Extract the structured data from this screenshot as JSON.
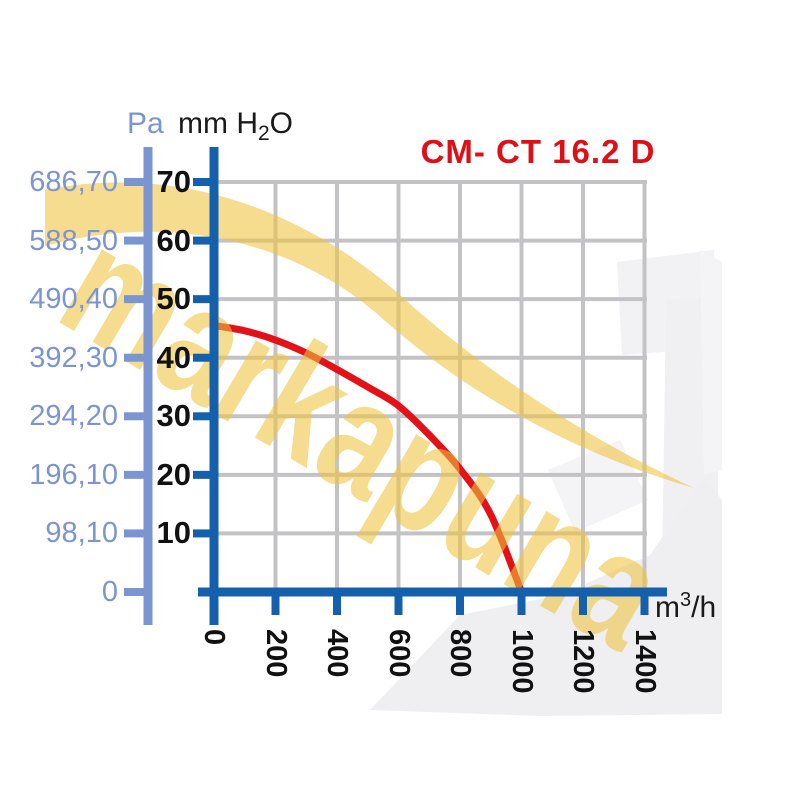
{
  "title": "CM- CT 16.2 D",
  "watermark": {
    "text": "markapuna"
  },
  "colors": {
    "title_red": "#dd1017",
    "curve_red": "#e41119",
    "dark_blue_axis": "#1560ad",
    "pa_blue_axis": "#7b95d1",
    "grid_gray": "#c3c3c5",
    "watermark_yellow": "#eec33f",
    "photo_gray": "#f0f0f3"
  },
  "y_axis_pa": {
    "label": "Pa",
    "ticks": [
      {
        "label": "686,70",
        "value": 70
      },
      {
        "label": "588,50",
        "value": 60
      },
      {
        "label": "490,40",
        "value": 50
      },
      {
        "label": "392,30",
        "value": 40
      },
      {
        "label": "294,20",
        "value": 30
      },
      {
        "label": "196,10",
        "value": 20
      },
      {
        "label": "98,10",
        "value": 10
      },
      {
        "label": "0",
        "value": 0
      }
    ]
  },
  "y_axis_mm": {
    "label_prefix": "mm H",
    "label_sub": "2",
    "label_suffix": "O",
    "ticks": [
      {
        "label": "70",
        "value": 70
      },
      {
        "label": "60",
        "value": 60
      },
      {
        "label": "50",
        "value": 50
      },
      {
        "label": "40",
        "value": 40
      },
      {
        "label": "30",
        "value": 30
      },
      {
        "label": "20",
        "value": 20
      },
      {
        "label": "10",
        "value": 10
      }
    ]
  },
  "x_axis": {
    "unit_base": "m",
    "unit_sup": "3",
    "unit_suffix": "/h",
    "ticks": [
      {
        "label": "0",
        "value": 0
      },
      {
        "label": "200",
        "value": 200
      },
      {
        "label": "400",
        "value": 400
      },
      {
        "label": "600",
        "value": 600
      },
      {
        "label": "800",
        "value": 800
      },
      {
        "label": "1000",
        "value": 1000
      },
      {
        "label": "1200",
        "value": 1200
      },
      {
        "label": "1400",
        "value": 1400
      }
    ]
  },
  "chart_data": {
    "type": "line",
    "title": "CM- CT 16.2 D",
    "xlabel": "m3/h",
    "ylabel_left": "Pa",
    "ylabel_right": "mm H2O",
    "xlim": [
      0,
      1400
    ],
    "ylim": [
      0,
      70
    ],
    "grid": true,
    "series": [
      {
        "name": "CM- CT 16.2 D fan curve",
        "x": [
          0,
          100,
          200,
          300,
          400,
          500,
          600,
          700,
          800,
          900,
          1000
        ],
        "y_mm_h2o": [
          45.5,
          44.6,
          43.0,
          40.8,
          38.0,
          35.0,
          31.8,
          26.8,
          21.0,
          13.2,
          0
        ],
        "y_pa": [
          446.4,
          437.5,
          421.8,
          400.2,
          372.8,
          343.4,
          312.0,
          262.9,
          206.0,
          129.5,
          0
        ]
      }
    ]
  }
}
